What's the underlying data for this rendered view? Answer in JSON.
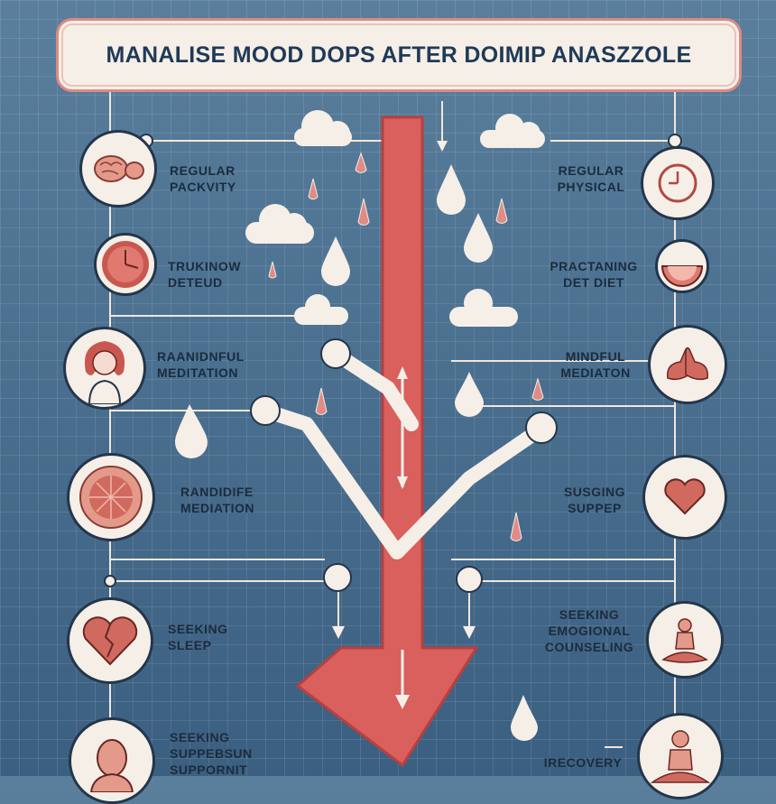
{
  "title": "MANALISE MOOD DOPS AFTER DOIMIP ANASZZOLE",
  "colors": {
    "background": "#4b7090",
    "title_border": "#dc8a83",
    "title_text": "#1f3a57",
    "arrow": "#d9605d",
    "connector": "#f6efe7",
    "node_fill": "#f6efe7"
  },
  "left_items": [
    {
      "icon": "brain-icon",
      "line1": "REGULAR",
      "line2": "PACKVITY"
    },
    {
      "icon": "clock-icon",
      "line1": "TRUKINOW",
      "line2": "DETEUD"
    },
    {
      "icon": "woman-icon",
      "line1": "RAANIDNFUL",
      "line2": "MEDITATION"
    },
    {
      "icon": "organ-icon",
      "line1": "RANDIDIFE",
      "line2": "MEDIATION"
    },
    {
      "icon": "heart-icon",
      "line1": "SEEKING",
      "line2": "SLEEP"
    },
    {
      "icon": "person-head-icon",
      "line1": "SEEKING",
      "line2": "SUPPEBSUN",
      "line3": "SUPPORNIT"
    }
  ],
  "right_items": [
    {
      "icon": "clock-icon",
      "line1": "REGULAR",
      "line2": "PHYSICAL"
    },
    {
      "icon": "fruit-slice-icon",
      "line1": "PRACTANING",
      "line2": "DET DIET"
    },
    {
      "icon": "hands-icon",
      "line1": "MINDFUL",
      "line2": "MEDIATON"
    },
    {
      "icon": "heart-icon",
      "line1": "SUSGING",
      "line2": "SUPPEP"
    },
    {
      "icon": "meditation-icon",
      "line1": "SEEKING",
      "line2": "EMOGIONAL",
      "line3": "COUNSELING"
    },
    {
      "icon": "meditation-icon",
      "line1": "IRECOVERY"
    }
  ]
}
